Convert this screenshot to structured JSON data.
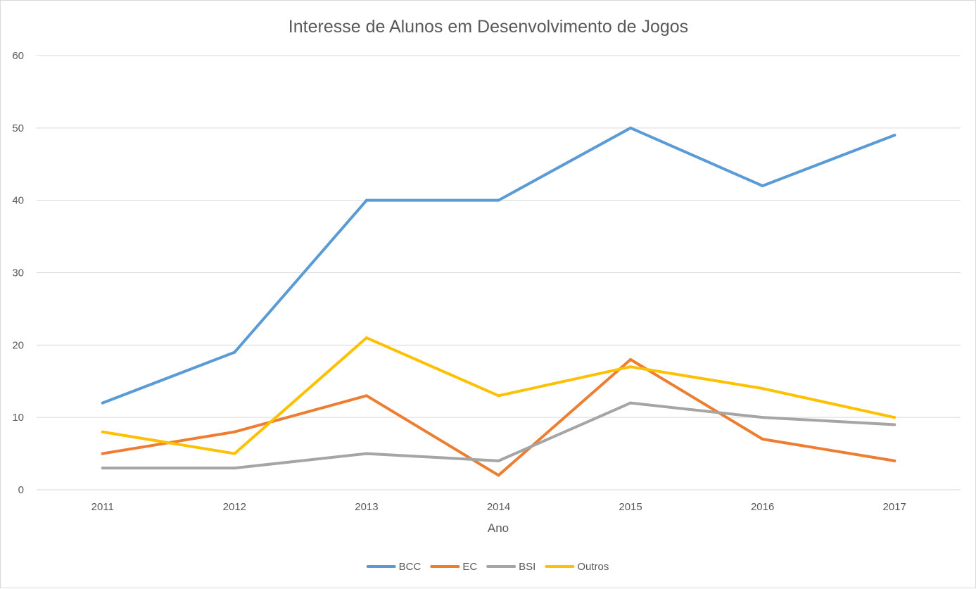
{
  "chart_data": {
    "type": "line",
    "title": "Interesse de Alunos em Desenvolvimento de Jogos",
    "xlabel": "Ano",
    "ylabel": "",
    "categories": [
      "2011",
      "2012",
      "2013",
      "2014",
      "2015",
      "2016",
      "2017"
    ],
    "ylim": [
      0,
      60
    ],
    "yticks": [
      0,
      10,
      20,
      30,
      40,
      50,
      60
    ],
    "grid": true,
    "legend_position": "bottom",
    "series": [
      {
        "name": "BCC",
        "color": "#5b9bd5",
        "values": [
          12,
          19,
          40,
          40,
          50,
          42,
          49
        ]
      },
      {
        "name": "EC",
        "color": "#ed7d31",
        "values": [
          5,
          8,
          13,
          2,
          18,
          7,
          4
        ]
      },
      {
        "name": "BSI",
        "color": "#a5a5a5",
        "values": [
          3,
          3,
          5,
          4,
          12,
          10,
          9
        ]
      },
      {
        "name": "Outros",
        "color": "#ffc000",
        "values": [
          8,
          5,
          21,
          13,
          17,
          14,
          10
        ]
      }
    ]
  }
}
